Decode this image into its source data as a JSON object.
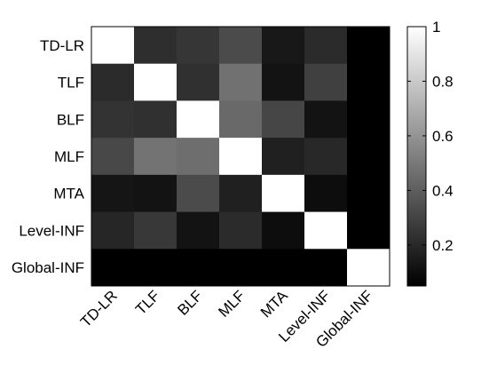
{
  "chart_data": {
    "type": "heatmap",
    "title": "",
    "xlabel": "",
    "ylabel": "",
    "row_labels": [
      "TD-LR",
      "TLF",
      "BLF",
      "MLF",
      "MTA",
      "Level-INF",
      "Global-INF"
    ],
    "col_labels": [
      "TD-LR",
      "TLF",
      "BLF",
      "MLF",
      "MTA",
      "Level-INF",
      "Global-INF"
    ],
    "values": [
      [
        1.0,
        0.22,
        0.25,
        0.33,
        0.14,
        0.21,
        0.05
      ],
      [
        0.21,
        1.0,
        0.23,
        0.47,
        0.12,
        0.29,
        0.05
      ],
      [
        0.24,
        0.23,
        1.0,
        0.44,
        0.31,
        0.12,
        0.05
      ],
      [
        0.32,
        0.48,
        0.46,
        1.0,
        0.17,
        0.2,
        0.05
      ],
      [
        0.13,
        0.12,
        0.33,
        0.17,
        1.0,
        0.1,
        0.05
      ],
      [
        0.19,
        0.26,
        0.12,
        0.21,
        0.1,
        1.0,
        0.05
      ],
      [
        0.05,
        0.05,
        0.05,
        0.05,
        0.05,
        0.05,
        1.0
      ]
    ],
    "colormap": "gray",
    "colorbar": {
      "range": [
        0.05,
        1.0
      ],
      "ticks": [
        0.2,
        0.4,
        0.6,
        0.8,
        1
      ],
      "tick_labels": [
        "0.2",
        "0.4",
        "0.6",
        "0.8",
        "1"
      ]
    },
    "grid": false,
    "legend": "colorbar-right"
  }
}
